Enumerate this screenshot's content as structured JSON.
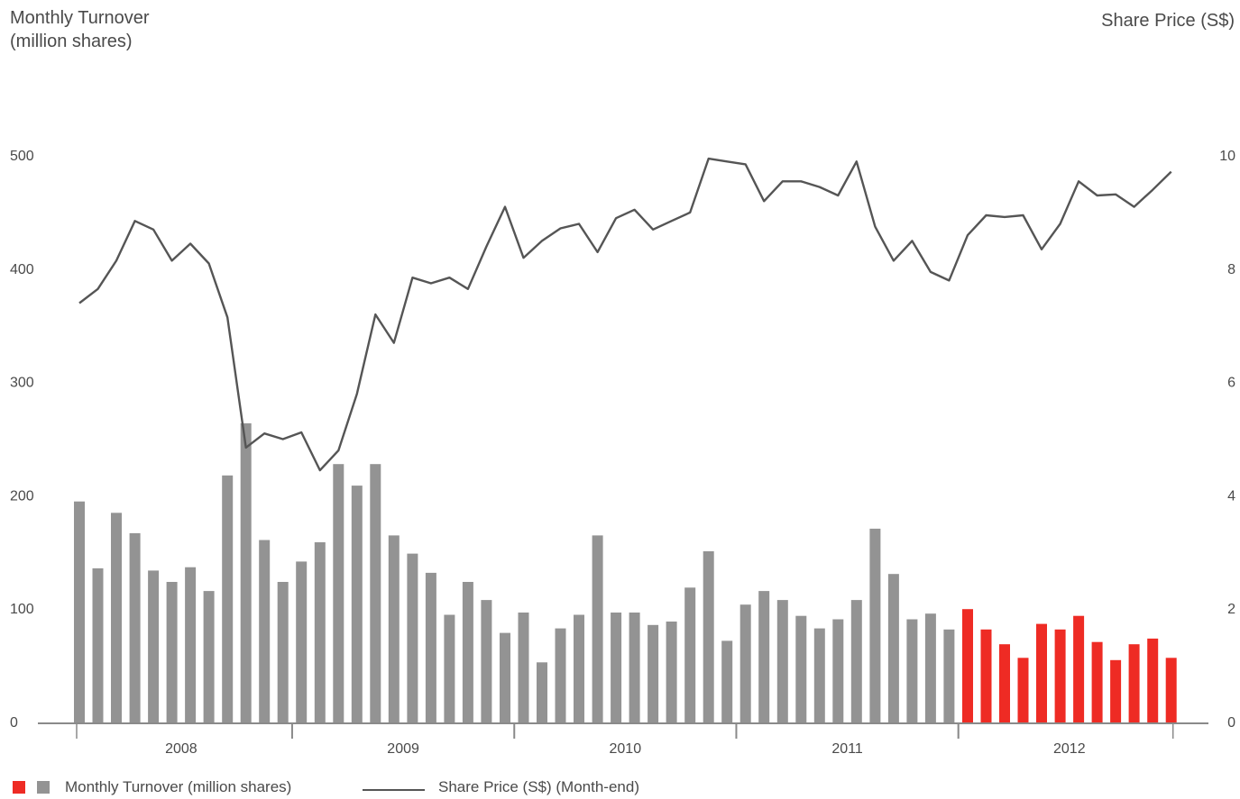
{
  "chart_data": {
    "type": "bar+line",
    "title": "",
    "left_axis_label_line1": "Monthly Turnover",
    "left_axis_label_line2": "(million shares)",
    "right_axis_label": "Share Price (S$)",
    "left_axis": {
      "min": 0,
      "max": 500,
      "ticks": [
        "0",
        "100",
        "200",
        "300",
        "400",
        "500"
      ]
    },
    "right_axis": {
      "min": 0,
      "max": 10,
      "ticks": [
        "0",
        "2",
        "4",
        "6",
        "8",
        "10"
      ]
    },
    "year_labels": [
      "2008",
      "2009",
      "2010",
      "2011",
      "2012"
    ],
    "series": [
      {
        "name": "Monthly Turnover (million shares)",
        "type": "bar",
        "axis": "left",
        "colors": {
          "2008-2011": "#939393",
          "2012": "#ee2b24"
        },
        "values": [
          195,
          136,
          185,
          167,
          134,
          124,
          137,
          116,
          218,
          264,
          161,
          124,
          142,
          159,
          228,
          209,
          228,
          165,
          149,
          132,
          95,
          124,
          108,
          79,
          97,
          53,
          83,
          95,
          165,
          97,
          97,
          86,
          89,
          119,
          151,
          72,
          104,
          116,
          108,
          94,
          83,
          91,
          108,
          171,
          131,
          91,
          96,
          82,
          100,
          82,
          69,
          57,
          87,
          82,
          94,
          71,
          55,
          69,
          74,
          57
        ]
      },
      {
        "name": "Share Price (S$) (Month-end)",
        "type": "line",
        "axis": "right",
        "color": "#555555",
        "values": [
          7.4,
          7.65,
          8.15,
          8.85,
          8.7,
          8.15,
          8.45,
          8.1,
          7.15,
          4.85,
          5.1,
          5.0,
          5.12,
          4.45,
          4.8,
          5.8,
          7.2,
          6.7,
          7.85,
          7.75,
          7.85,
          7.65,
          8.4,
          9.1,
          8.2,
          8.5,
          8.72,
          8.8,
          8.3,
          8.9,
          9.05,
          8.7,
          8.85,
          9.0,
          9.95,
          9.9,
          9.85,
          9.2,
          9.55,
          9.55,
          9.45,
          9.3,
          9.9,
          8.75,
          8.15,
          8.5,
          7.95,
          7.8,
          8.6,
          8.95,
          8.92,
          8.95,
          8.35,
          8.8,
          9.55,
          9.3,
          9.32,
          9.1,
          9.4,
          9.72
        ]
      }
    ],
    "grid": false,
    "legend_position": "bottom-left"
  },
  "legend": {
    "turnover_label": "Monthly Turnover (million shares)",
    "price_label": "Share Price (S$) (Month-end)"
  }
}
